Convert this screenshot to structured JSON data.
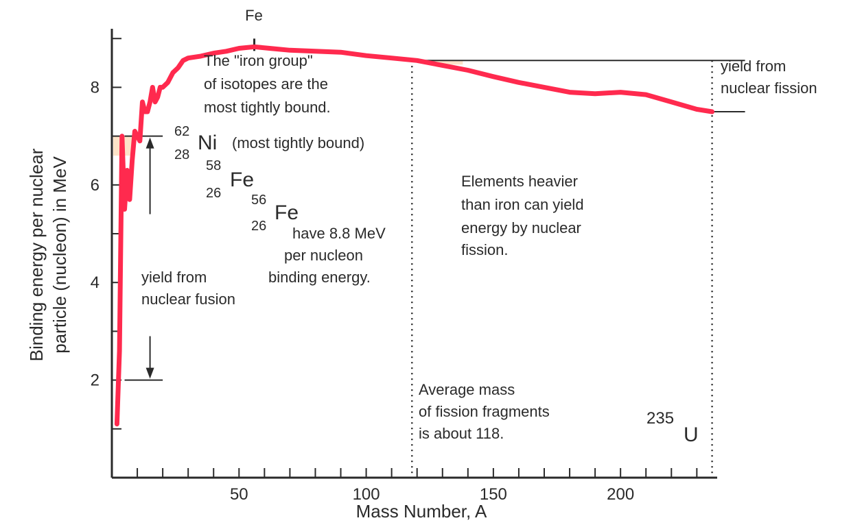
{
  "chart_data": {
    "type": "line",
    "title": "",
    "xlabel": "Mass Number, A",
    "ylabel": [
      "Binding energy per nuclear",
      "particle (nucleon) in MeV"
    ],
    "xlim": [
      0,
      238
    ],
    "ylim": [
      0,
      9.2
    ],
    "xticks": [
      50,
      100,
      150,
      200
    ],
    "xminor_step": 10,
    "yticks": [
      2,
      4,
      6,
      8
    ],
    "yminor_step": 1,
    "grid": false,
    "series": [
      {
        "color": "#ff2a4e",
        "x": [
          2,
          3,
          4,
          5,
          6,
          7,
          8,
          9,
          10,
          11,
          12,
          13,
          14,
          15,
          16,
          17,
          18,
          19,
          20,
          22,
          24,
          26,
          28,
          30,
          35,
          40,
          45,
          50,
          56,
          62,
          70,
          80,
          90,
          100,
          110,
          120,
          130,
          140,
          150,
          160,
          170,
          180,
          190,
          200,
          210,
          220,
          230,
          236
        ],
        "y": [
          1.1,
          2.6,
          7.0,
          5.5,
          6.3,
          5.7,
          6.5,
          7.1,
          7.0,
          6.9,
          7.7,
          7.5,
          7.5,
          7.7,
          8.0,
          7.7,
          7.8,
          8.0,
          8.0,
          8.1,
          8.3,
          8.4,
          8.55,
          8.6,
          8.64,
          8.7,
          8.74,
          8.8,
          8.83,
          8.8,
          8.76,
          8.74,
          8.72,
          8.65,
          8.6,
          8.55,
          8.45,
          8.35,
          8.22,
          8.1,
          8.0,
          7.9,
          7.87,
          7.9,
          7.85,
          7.7,
          7.55,
          7.5
        ]
      }
    ],
    "annotations": {
      "fe_mark": "Fe",
      "iron_group": [
        "The \"iron group\"",
        "of isotopes are the",
        "most tightly bound."
      ],
      "ni62": {
        "mass": "62",
        "z": "28",
        "symbol": "Ni",
        "note": "(most tightly bound)"
      },
      "fe58": {
        "mass": "58",
        "z": "26",
        "symbol": "Fe"
      },
      "fe56": {
        "mass": "56",
        "z": "26",
        "symbol": "Fe"
      },
      "fe_binding": [
        "have 8.8 MeV",
        "per nucleon",
        "binding energy."
      ],
      "fusion_yield": [
        "yield from",
        "nuclear fusion"
      ],
      "heavier": [
        "Elements heavier",
        "than iron can yield",
        "energy by nuclear",
        "fission."
      ],
      "fission_fragments": [
        "Average mass",
        "of fission fragments",
        "is about 118."
      ],
      "fission_yield": [
        "yield from",
        "nuclear fission"
      ],
      "u235": {
        "mass": "235",
        "symbol": "U"
      }
    },
    "fusion_bracket": {
      "top": 7.0,
      "bottom": 2.0
    },
    "fission_bracket": {
      "top": 8.55,
      "bottom": 7.5
    },
    "fragment_mass": 118,
    "uranium_mass": 236,
    "fe_peak_mass": 56
  }
}
